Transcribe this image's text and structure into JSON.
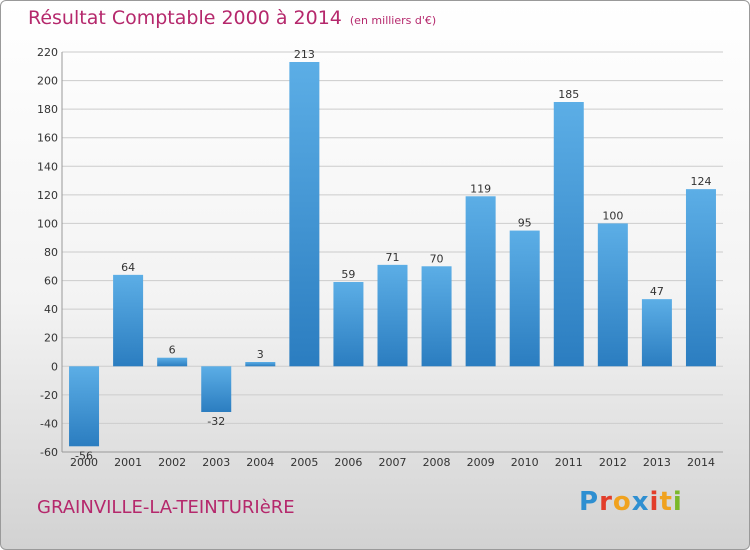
{
  "title": "Résultat Comptable 2000 à 2014",
  "unit": "(en milliers d'€)",
  "place": "GRAINVILLE-LA-TEINTURIèRE",
  "logo": "Proxiti",
  "colors": {
    "title": "#b5286c",
    "bar_light": "#5caee6",
    "bar_dark": "#2b7dc0",
    "grid": "#cccccc",
    "logo_letters": [
      "#2e8fd1",
      "#e23d2a",
      "#f0a21e",
      "#2e8fd1",
      "#e23d2a",
      "#f0a21e",
      "#7ab829"
    ]
  },
  "chart_data": {
    "type": "bar",
    "categories": [
      "2000",
      "2001",
      "2002",
      "2003",
      "2004",
      "2005",
      "2006",
      "2007",
      "2008",
      "2009",
      "2010",
      "2011",
      "2012",
      "2013",
      "2014"
    ],
    "values": [
      -56,
      64,
      6,
      -32,
      3,
      213,
      59,
      71,
      70,
      119,
      95,
      185,
      100,
      47,
      124
    ],
    "yticks": [
      -60,
      -40,
      -20,
      0,
      20,
      40,
      60,
      80,
      100,
      120,
      140,
      160,
      180,
      200,
      220
    ],
    "ylim": [
      -60,
      220
    ],
    "grid": true,
    "legend": "none"
  }
}
